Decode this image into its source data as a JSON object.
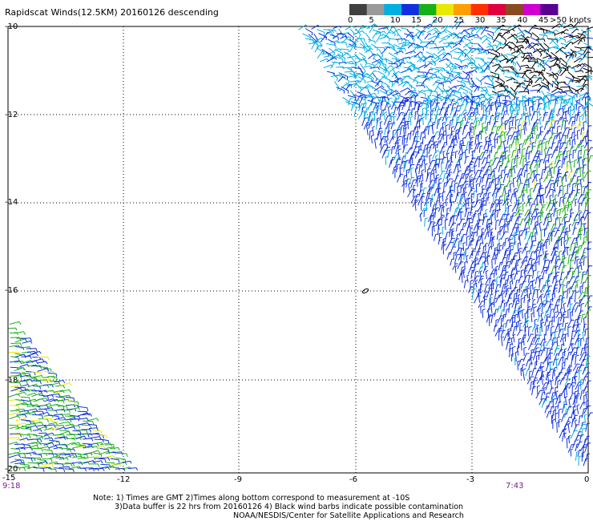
{
  "title": "Rapidscat Winds(12.5KM) 20160126 descending",
  "legend": {
    "unit_label": ">50 knots",
    "ticks": [
      "0",
      "5",
      "10",
      "15",
      "20",
      "25",
      "30",
      "35",
      "40",
      "45"
    ],
    "colors": [
      "#404040",
      "#9a9a9a",
      "#00b0e0",
      "#1030e0",
      "#18b018",
      "#e8e800",
      "#ffa000",
      "#ff3000",
      "#e00040",
      "#8a4a20",
      "#d000d0",
      "#5a0090"
    ]
  },
  "axes": {
    "lat_labels": [
      "-10",
      "-12",
      "-14",
      "-16",
      "-18",
      "-20"
    ],
    "lon_labels": [
      "-12",
      "-9",
      "-6",
      "-3",
      "0"
    ],
    "corner_lat": "-15"
  },
  "times": {
    "left": "9:18",
    "right": "7:43"
  },
  "notes": {
    "line1": "Note: 1) Times are GMT 2)Times along bottom correspond to measurement at -10S",
    "line2": "3)Data buffer is 22 hrs from 20160126 4) Black wind barbs indicate possible contamination",
    "line3": "NOAA/NESDIS/Center for Satellite Applications and Research"
  }
}
